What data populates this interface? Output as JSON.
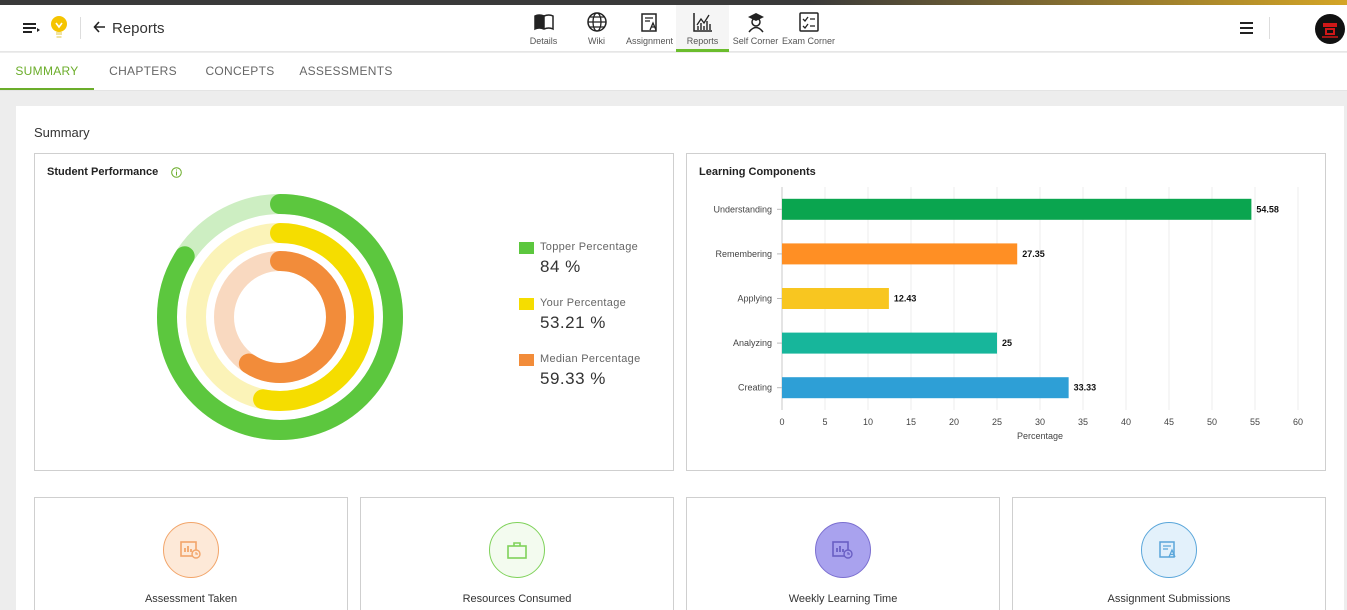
{
  "header": {
    "title": "Reports",
    "nav": [
      {
        "label": "Details",
        "icon": "book-icon"
      },
      {
        "label": "Wiki",
        "icon": "globe-icon"
      },
      {
        "label": "Assignment",
        "icon": "assignment-icon"
      },
      {
        "label": "Reports",
        "icon": "chart-icon",
        "active": true
      },
      {
        "label": "Self Corner",
        "icon": "graduate-icon"
      },
      {
        "label": "Exam Corner",
        "icon": "checklist-icon"
      }
    ]
  },
  "tabs": [
    {
      "label": "SUMMARY",
      "active": true
    },
    {
      "label": "CHAPTERS"
    },
    {
      "label": "CONCEPTS"
    },
    {
      "label": "ASSESSMENTS"
    }
  ],
  "summary": {
    "title": "Summary",
    "student_performance": {
      "title": "Student Performance",
      "legend": [
        {
          "name": "Topper Percentage",
          "value": "84 %",
          "color": "#5cc73e",
          "light": "#cdeec2",
          "pct": 84
        },
        {
          "name": "Your Percentage",
          "value": "53.21 %",
          "color": "#f5dd00",
          "light": "#fbf3b8",
          "pct": 53.21
        },
        {
          "name": "Median Percentage",
          "value": "59.33 %",
          "color": "#f28c3a",
          "light": "#f9d9c0",
          "pct": 59.33
        }
      ]
    },
    "learning_components": {
      "title": "Learning Components"
    },
    "stats": [
      {
        "label": "Assessment Taken",
        "icon": "assessment-icon",
        "color": "#f2a56a",
        "bg": "#fde9d8"
      },
      {
        "label": "Resources Consumed",
        "icon": "briefcase-icon",
        "color": "#7fd25a",
        "bg": "#eefae8"
      },
      {
        "label": "Weekly Learning Time",
        "icon": "clock-report-icon",
        "color": "#7b6fd0",
        "bg": "#a9a2ee"
      },
      {
        "label": "Assignment Submissions",
        "icon": "submission-icon",
        "color": "#5aa6da",
        "bg": "#e3f1fb"
      }
    ]
  },
  "chart_data": {
    "type": "bar",
    "orientation": "horizontal",
    "title": "Learning Components",
    "categories": [
      "Understanding",
      "Remembering",
      "Applying",
      "Analyzing",
      "Creating"
    ],
    "values": [
      54.58,
      27.35,
      12.43,
      25,
      33.33
    ],
    "value_labels": [
      "54.58",
      "27.35",
      "12.43",
      "25",
      "33.33"
    ],
    "colors": [
      "#0aa54f",
      "#ff8f24",
      "#f8c620",
      "#17b69b",
      "#2e9fd6"
    ],
    "xlabel": "Percentage",
    "xlim": [
      0,
      60
    ],
    "xticks": [
      "0",
      "5",
      "10",
      "15",
      "20",
      "25",
      "30",
      "35",
      "40",
      "45",
      "50",
      "55",
      "60"
    ],
    "grid": true
  }
}
